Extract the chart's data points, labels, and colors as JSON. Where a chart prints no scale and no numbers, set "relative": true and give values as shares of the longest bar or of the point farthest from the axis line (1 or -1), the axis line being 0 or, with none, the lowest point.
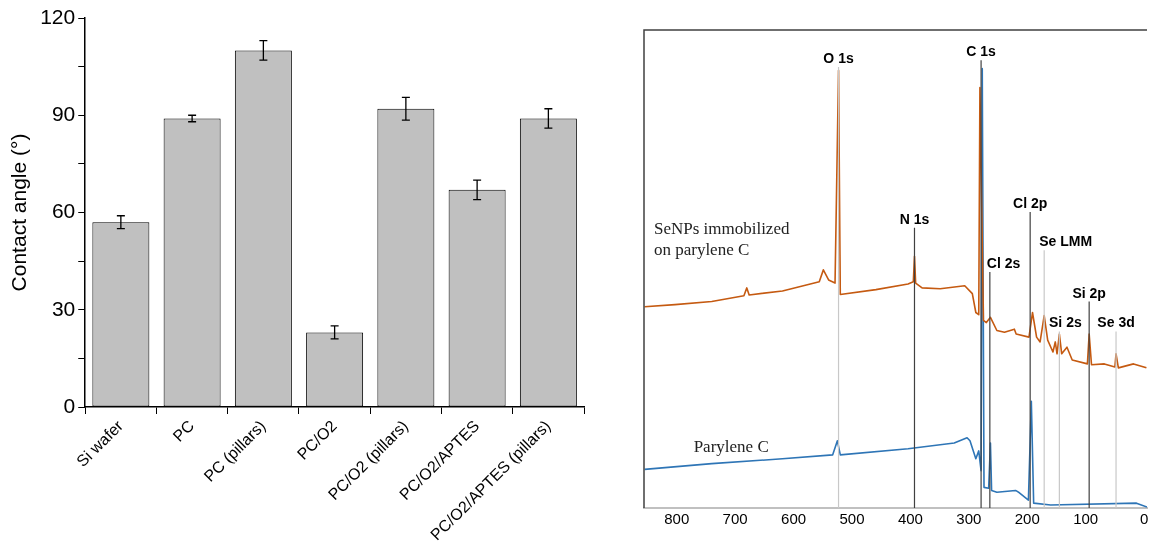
{
  "chart_data": [
    {
      "type": "bar",
      "ylabel": "Contact angle (°)",
      "categories": [
        "Si wafer",
        "PC",
        "PC (pillars)",
        "PC/O2",
        "PC/O2 (pillars)",
        "PC/O2/APTES",
        "PC/O2/APTES (pillars)"
      ],
      "values": [
        57,
        89,
        110,
        23,
        92,
        67,
        89
      ],
      "errors": [
        2,
        1,
        3,
        2,
        3.5,
        3,
        3
      ],
      "color": "#c0c0c0",
      "ylim": [
        0,
        120
      ],
      "yticks": [
        0,
        {
          "value": 15,
          "label": null
        },
        30,
        {
          "value": 45,
          "label": null
        },
        60,
        {
          "value": 75,
          "label": null
        },
        90,
        {
          "value": 105,
          "label": null
        },
        120
      ],
      "legend": false
    },
    {
      "type": "line",
      "relative": true,
      "xlim": [
        856,
        -5
      ],
      "xticks": [
        800,
        700,
        600,
        500,
        400,
        300,
        200,
        100,
        0
      ],
      "tick_labels": "x",
      "legend": false,
      "series": [
        {
          "name": "SeNPs immobilized on parylene C",
          "color": "#c55a11",
          "x": [
            855,
            803,
            740,
            685,
            680,
            676,
            619,
            556,
            549,
            540,
            529,
            523,
            520,
            459,
            404,
            395,
            393,
            391,
            380,
            349,
            307,
            294,
            288,
            283,
            281,
            275,
            270,
            263,
            252,
            239,
            222,
            219,
            197,
            191,
            184,
            178,
            171,
            165,
            156,
            152,
            149,
            145,
            141,
            132,
            123,
            97,
            94,
            90,
            68,
            50,
            48,
            44,
            18,
            -4
          ],
          "values": [
            0.458,
            0.463,
            0.47,
            0.483,
            0.501,
            0.485,
            0.494,
            0.515,
            0.542,
            0.519,
            0.512,
            0.996,
            0.486,
            0.497,
            0.51,
            0.515,
            0.573,
            0.512,
            0.501,
            0.499,
            0.506,
            0.488,
            0.445,
            0.44,
            0.957,
            0.427,
            0.422,
            0.434,
            0.404,
            0.4,
            0.407,
            0.396,
            0.389,
            0.445,
            0.389,
            0.378,
            0.438,
            0.382,
            0.355,
            0.378,
            0.351,
            0.396,
            0.351,
            0.366,
            0.337,
            0.328,
            0.396,
            0.326,
            0.328,
            0.321,
            0.351,
            0.319,
            0.328,
            0.319
          ]
        },
        {
          "name": "Parylene C",
          "color": "#2e75b6",
          "x": [
            855,
            740,
            619,
            533,
            525,
            520,
            404,
            325,
            303,
            298,
            288,
            283,
            279,
            277,
            274,
            266,
            263,
            261,
            252,
            220,
            215,
            198,
            193,
            189,
            160,
            13,
            -5
          ],
          "values": [
            0.088,
            0.101,
            0.112,
            0.121,
            0.153,
            0.121,
            0.135,
            0.148,
            0.16,
            0.153,
            0.112,
            0.13,
            0.085,
            1,
            0.047,
            0.045,
            0.148,
            0.04,
            0.036,
            0.04,
            0.036,
            0.018,
            0.243,
            0.011,
            0.007,
            0.011,
            0.002
          ]
        }
      ],
      "ref_lines": [
        {
          "axis": "x",
          "value": 523,
          "label": "O 1s",
          "color": "#c8c8c8"
        },
        {
          "axis": "x",
          "value": 393,
          "label": "N 1s",
          "color": "#404040"
        },
        {
          "axis": "x",
          "value": 279,
          "label": "C 1s",
          "color": "#404040"
        },
        {
          "axis": "x",
          "value": 264,
          "label": "Cl 2s",
          "color": "#404040"
        },
        {
          "axis": "x",
          "value": 195,
          "label": "Cl 2p",
          "color": "#404040"
        },
        {
          "axis": "x",
          "value": 171,
          "label": "Se LMM",
          "color": "#c8c8c8"
        },
        {
          "axis": "x",
          "value": 145,
          "label": "Si 2s",
          "color": "#c8c8c8"
        },
        {
          "axis": "x",
          "value": 94,
          "label": "Si 2p",
          "color": "#404040"
        },
        {
          "axis": "x",
          "value": 48,
          "label": "Se 3d",
          "color": "#c8c8c8"
        }
      ]
    }
  ]
}
